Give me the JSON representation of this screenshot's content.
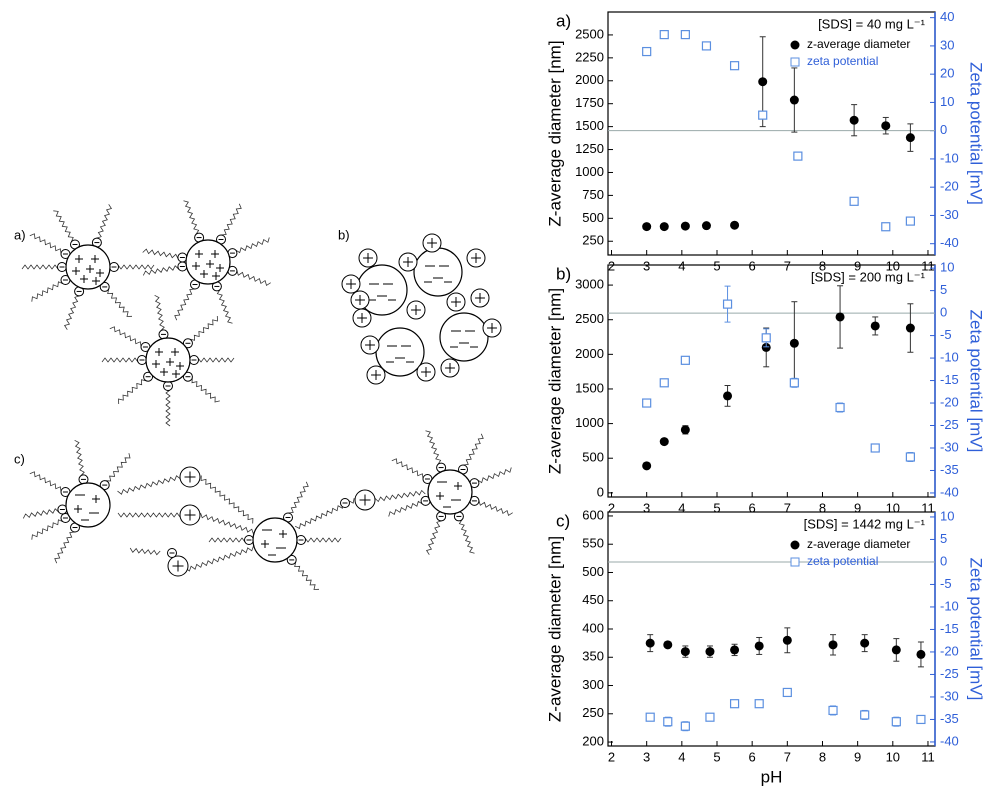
{
  "diagram": {
    "panels": [
      {
        "label": "a)"
      },
      {
        "label": "b)"
      },
      {
        "label": "c)"
      }
    ]
  },
  "chart_data": [
    {
      "type": "scatter",
      "panel": "a)",
      "annotation": "[SDS] = 40 mg L⁻¹",
      "legend": true,
      "zero_line": true,
      "ylabel": "Z-average diameter [nm]",
      "y2label": "Zeta potential [mV]",
      "xlim": [
        1.9,
        11.2
      ],
      "xticks": [
        2,
        3,
        4,
        5,
        6,
        7,
        8,
        9,
        10,
        11
      ],
      "ylim": [
        100,
        2750
      ],
      "yticks": [
        250,
        500,
        750,
        1000,
        1250,
        1500,
        1750,
        2000,
        2250,
        2500
      ],
      "y2lim": [
        -44,
        42
      ],
      "y2ticks": [
        -40,
        -30,
        -20,
        -10,
        0,
        10,
        20,
        30,
        40
      ],
      "series": [
        {
          "name": "z-average diameter",
          "color": "#000000",
          "marker": "circle",
          "x": [
            3.0,
            3.5,
            4.1,
            4.7,
            5.5,
            6.3,
            7.2,
            8.9,
            9.8,
            10.5
          ],
          "values": [
            410,
            410,
            415,
            420,
            425,
            1990,
            1790,
            1570,
            1510,
            1380
          ],
          "errors": [
            null,
            null,
            null,
            null,
            null,
            490,
            350,
            170,
            90,
            150
          ]
        },
        {
          "name": "zeta potential",
          "color": "#5b8fe0",
          "marker": "square",
          "axis": "y2",
          "x": [
            3.0,
            3.5,
            4.1,
            4.7,
            5.5,
            6.3,
            7.3,
            8.9,
            9.8,
            10.5
          ],
          "values": [
            28,
            34,
            34,
            30,
            23,
            5.5,
            -9,
            -25,
            -34,
            -32
          ],
          "errors": [
            null,
            null,
            null,
            null,
            null,
            null,
            null,
            null,
            null,
            null
          ]
        }
      ]
    },
    {
      "type": "scatter",
      "panel": "b)",
      "annotation": "[SDS] = 200 mg L⁻¹",
      "legend": false,
      "zero_line": true,
      "ylabel": "Z-average diameter [nm]",
      "y2label": "Zeta potential [mV]",
      "xlim": [
        1.9,
        11.2
      ],
      "xticks": [
        2,
        3,
        4,
        5,
        6,
        7,
        8,
        9,
        10,
        11
      ],
      "ylim": [
        -60,
        3290
      ],
      "yticks": [
        0,
        500,
        1000,
        1500,
        2000,
        2500,
        3000
      ],
      "y2lim": [
        -40.9,
        10.7
      ],
      "y2ticks": [
        -40,
        -35,
        -30,
        -25,
        -20,
        -15,
        -10,
        -5,
        0,
        5,
        10
      ],
      "series": [
        {
          "name": "z-average diameter",
          "color": "#000000",
          "marker": "circle",
          "x": [
            3.0,
            3.5,
            4.1,
            5.3,
            6.4,
            7.2,
            8.5,
            9.5,
            10.5
          ],
          "values": [
            390,
            740,
            910,
            1400,
            2100,
            2160,
            2540,
            2410,
            2380
          ],
          "errors": [
            null,
            null,
            60,
            150,
            280,
            600,
            450,
            130,
            350
          ]
        },
        {
          "name": "zeta potential",
          "color": "#5b8fe0",
          "marker": "square",
          "axis": "y2",
          "x": [
            3.0,
            3.5,
            4.1,
            5.3,
            6.4,
            7.2,
            8.5,
            9.5,
            10.5
          ],
          "values": [
            -20,
            -15.5,
            -10.5,
            2,
            -5.5,
            -15.5,
            -21,
            -30,
            -32
          ],
          "errors": [
            null,
            null,
            null,
            4,
            2,
            1,
            1,
            null,
            1
          ]
        }
      ]
    },
    {
      "type": "scatter",
      "panel": "c)",
      "annotation": "[SDS] = 1442 mg L⁻¹",
      "legend": true,
      "zero_line": true,
      "ylabel": "Z-average diameter [nm]",
      "y2label": "Zeta potential [mV]",
      "xlabel": "pH",
      "xlim": [
        1.9,
        11.2
      ],
      "xticks": [
        2,
        3,
        4,
        5,
        6,
        7,
        8,
        9,
        10,
        11
      ],
      "ylim": [
        193,
        607
      ],
      "yticks": [
        200,
        250,
        300,
        350,
        400,
        450,
        500,
        550,
        600
      ],
      "y2lim": [
        -40.9,
        11.1
      ],
      "y2ticks": [
        -40,
        -35,
        -30,
        -25,
        -20,
        -15,
        -10,
        -5,
        0,
        5,
        10
      ],
      "series": [
        {
          "name": "z-average diameter",
          "color": "#000000",
          "marker": "circle",
          "x": [
            3.1,
            3.6,
            4.1,
            4.8,
            5.5,
            6.2,
            7.0,
            8.3,
            9.2,
            10.1,
            10.8
          ],
          "values": [
            375,
            372,
            360,
            360,
            363,
            370,
            380,
            372,
            375,
            363,
            355
          ],
          "errors": [
            15,
            null,
            10,
            10,
            10,
            15,
            22,
            18,
            15,
            20,
            22
          ]
        },
        {
          "name": "zeta potential",
          "color": "#5b8fe0",
          "marker": "square",
          "axis": "y2",
          "x": [
            3.1,
            3.6,
            4.1,
            4.8,
            5.5,
            6.2,
            7.0,
            8.3,
            9.2,
            10.1,
            10.8
          ],
          "values": [
            -34.5,
            -35.5,
            -36.5,
            -34.5,
            -31.5,
            -31.5,
            -29,
            -33,
            -34,
            -35.5,
            -35
          ],
          "errors": [
            null,
            1,
            1,
            null,
            null,
            null,
            null,
            1,
            1,
            1,
            null
          ]
        }
      ]
    }
  ]
}
